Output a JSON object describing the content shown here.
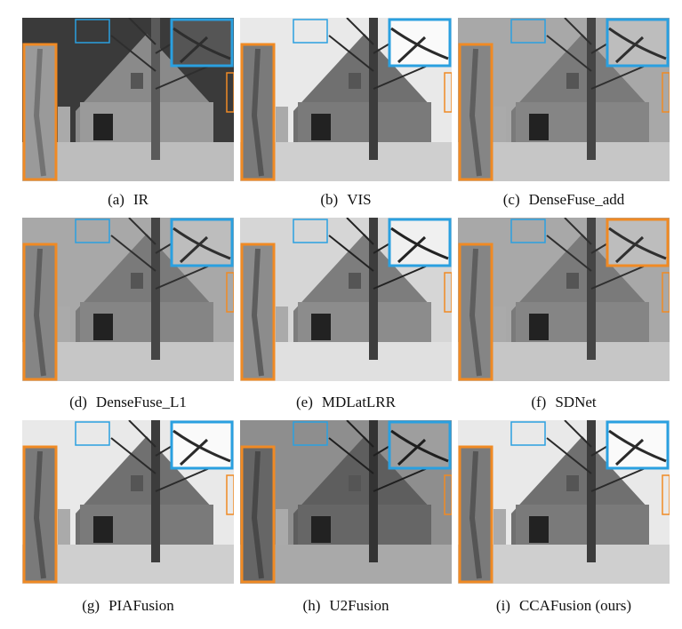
{
  "figure": {
    "panels": [
      {
        "tag": "(a)",
        "label": "IR",
        "tone": "ir",
        "inset_blue_color": "#2aa0e0",
        "inset_orange_color": "#f08a24"
      },
      {
        "tag": "(b)",
        "label": "VIS",
        "tone": "vis",
        "inset_blue_color": "#2aa0e0",
        "inset_orange_color": "#f08a24"
      },
      {
        "tag": "(c)",
        "label": "DenseFuse_add",
        "tone": "mid",
        "inset_blue_color": "#2aa0e0",
        "inset_orange_color": "#f08a24"
      },
      {
        "tag": "(d)",
        "label": "DenseFuse_L1",
        "tone": "mid",
        "inset_blue_color": "#2aa0e0",
        "inset_orange_color": "#f08a24"
      },
      {
        "tag": "(e)",
        "label": "MDLatLRR",
        "tone": "bright",
        "inset_blue_color": "#2aa0e0",
        "inset_orange_color": "#f08a24"
      },
      {
        "tag": "(f)",
        "label": "SDNet",
        "tone": "mid",
        "inset_blue_color": "#2aa0e0",
        "inset_orange_color": "#f08a24",
        "swap": true
      },
      {
        "tag": "(g)",
        "label": "PIAFusion",
        "tone": "vis",
        "inset_blue_color": "#2aa0e0",
        "inset_orange_color": "#f08a24"
      },
      {
        "tag": "(h)",
        "label": "U2Fusion",
        "tone": "dark",
        "inset_blue_color": "#2aa0e0",
        "inset_orange_color": "#f08a24"
      },
      {
        "tag": "(i)",
        "label": "CCAFusion (ours)",
        "tone": "vis",
        "inset_blue_color": "#2aa0e0",
        "inset_orange_color": "#f08a24"
      }
    ]
  }
}
